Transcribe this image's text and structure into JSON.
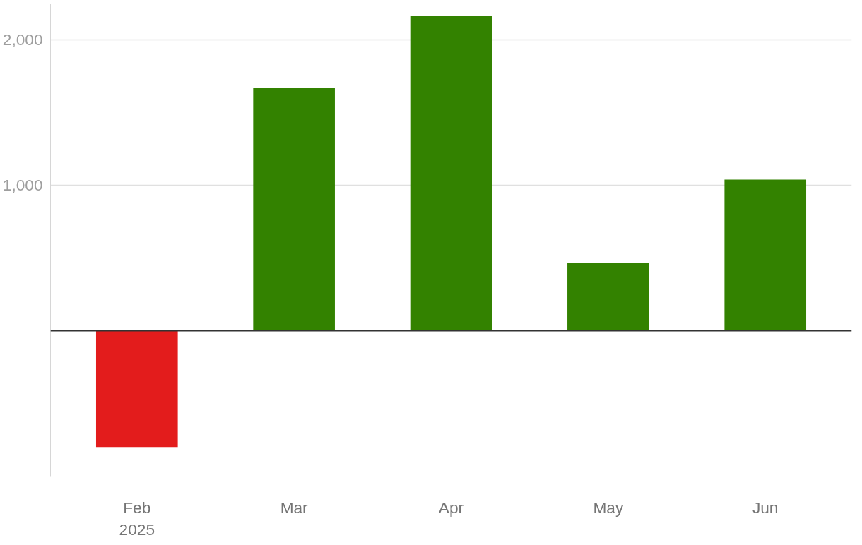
{
  "chart_data": {
    "type": "bar",
    "categories": [
      "Feb\n2025",
      "Mar",
      "Apr",
      "May",
      "Jun"
    ],
    "values": [
      -800,
      1670,
      2170,
      470,
      1040
    ],
    "colors": [
      "#e31c1c",
      "#338200",
      "#338200",
      "#338200",
      "#338200"
    ],
    "ylim": [
      -1000,
      2250
    ],
    "yticks": [
      {
        "value": 1000,
        "label": "1,000"
      },
      {
        "value": 2000,
        "label": "2,000"
      }
    ],
    "grid": "y"
  }
}
